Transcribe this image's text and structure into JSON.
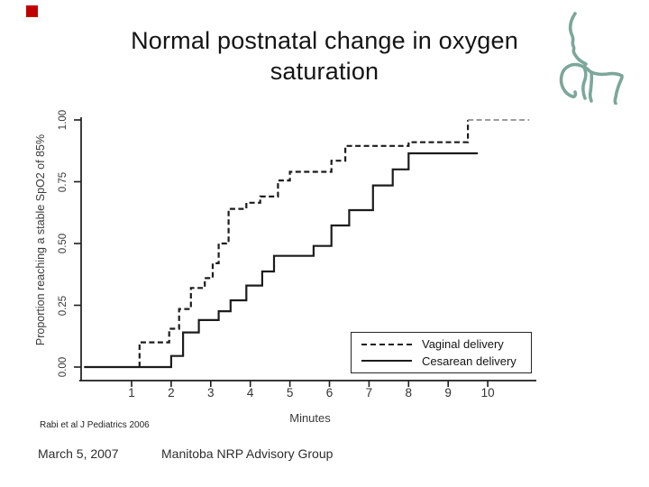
{
  "slide": {
    "accent_square_color": "#C00000",
    "title_line1": "Normal postnatal change in oxygen",
    "title_line2": "saturation",
    "citation": "Rabi et al J Pediatrics 2006",
    "footer": {
      "date": "March 5, 2007",
      "org": "Manitoba NRP Advisory Group"
    },
    "logo": {
      "name": "perinatal-profile-sketch",
      "color": "#7CA79A"
    }
  },
  "chart_data": {
    "type": "line",
    "line_style": "step",
    "title": "",
    "xlabel": "Minutes",
    "ylabel": "Proportion reaching a stable SpO2 of 85%",
    "xlim": [
      0,
      11.3
    ],
    "ylim": [
      0,
      1
    ],
    "xticks": [
      1,
      2,
      3,
      4,
      5,
      6,
      7,
      8,
      9,
      10
    ],
    "ytick_labels": [
      "0.00",
      "0.25",
      "0.50",
      "0.75",
      "1.00"
    ],
    "ytick_values": [
      0,
      0.25,
      0.5,
      0.75,
      1
    ],
    "grid": false,
    "legend_position": "inside-lower-right",
    "axis_color": "#1c1c1c",
    "series": [
      {
        "name": "Vaginal delivery",
        "line": "dashed",
        "color": "#1C1C1C",
        "points_min_prop": [
          [
            1.2,
            0
          ],
          [
            1.2,
            0.1
          ],
          [
            1.95,
            0.155
          ],
          [
            2.2,
            0.235
          ],
          [
            2.5,
            0.32
          ],
          [
            2.85,
            0.36
          ],
          [
            3.05,
            0.42
          ],
          [
            3.2,
            0.5
          ],
          [
            3.45,
            0.64
          ],
          [
            3.9,
            0.665
          ],
          [
            4.25,
            0.69
          ],
          [
            4.7,
            0.755
          ],
          [
            5.0,
            0.79
          ],
          [
            6.05,
            0.835
          ],
          [
            6.4,
            0.895
          ],
          [
            8.0,
            0.91
          ],
          [
            9.5,
            1.0
          ]
        ],
        "tail": {
          "to_minute": 11.05,
          "color": "#9B9B9B"
        }
      },
      {
        "name": "Cesarean delivery",
        "line": "solid",
        "color": "#1C1C1C",
        "points_min_prop": [
          [
            -0.2,
            0
          ],
          [
            2.0,
            0
          ],
          [
            2.0,
            0.045
          ],
          [
            2.3,
            0.14
          ],
          [
            2.7,
            0.19
          ],
          [
            3.2,
            0.226
          ],
          [
            3.5,
            0.27
          ],
          [
            3.9,
            0.33
          ],
          [
            4.3,
            0.387
          ],
          [
            4.6,
            0.45
          ],
          [
            5.6,
            0.49
          ],
          [
            6.05,
            0.573
          ],
          [
            6.5,
            0.635
          ],
          [
            7.1,
            0.735
          ],
          [
            7.6,
            0.8
          ],
          [
            8.0,
            0.865
          ],
          [
            9.75,
            0.865
          ]
        ]
      }
    ]
  }
}
